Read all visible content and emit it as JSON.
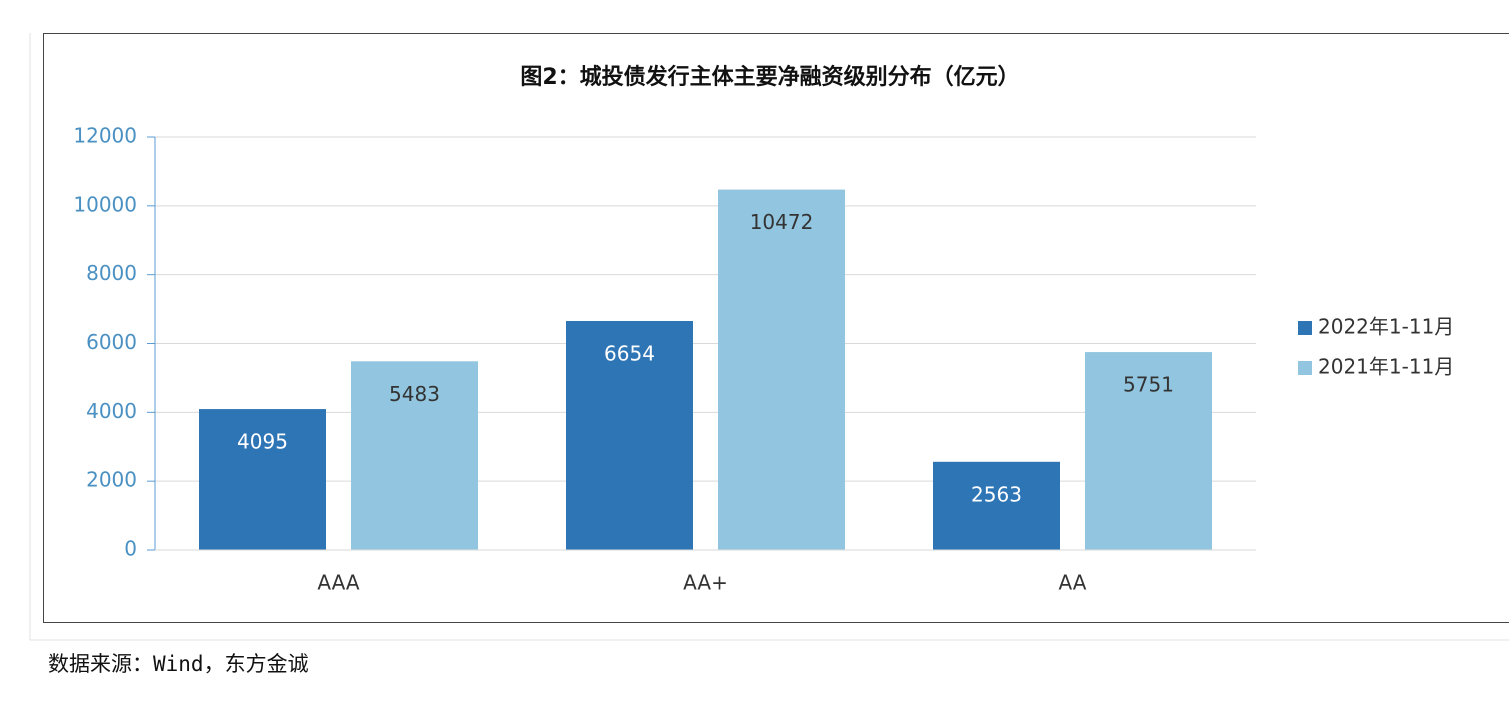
{
  "chart_data": {
    "type": "bar",
    "title": "图2：城投债发行主体主要净融资级别分布（亿元）",
    "categories": [
      "AAA",
      "AA+",
      "AA"
    ],
    "series": [
      {
        "name": "2022年1-11月",
        "color": "#2e75b6",
        "values": [
          4095,
          6654,
          2563
        ]
      },
      {
        "name": "2021年1-11月",
        "color": "#92c6e0",
        "values": [
          5483,
          10472,
          5751
        ]
      }
    ],
    "ylim": [
      0,
      12000
    ],
    "yticks": [
      0,
      2000,
      4000,
      6000,
      8000,
      10000,
      12000
    ],
    "grid": true,
    "legend": "right",
    "source": "数据来源：Wind，东方金诚"
  }
}
